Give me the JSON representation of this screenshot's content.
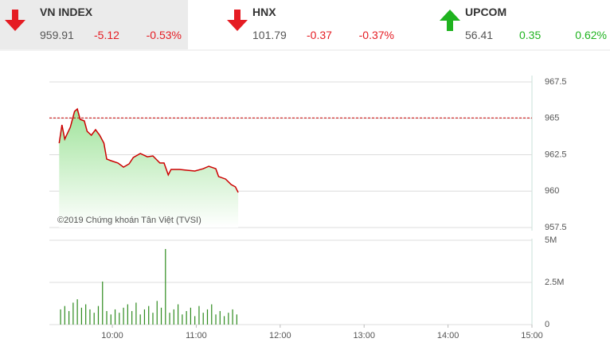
{
  "tickers": [
    {
      "name": "VN INDEX",
      "value": 959.91,
      "change": -5.12,
      "percent": "-0.53%"
    },
    {
      "name": "HNX",
      "value": 101.79,
      "change": -0.37,
      "percent": "-0.37%"
    },
    {
      "name": "UPCOM",
      "value": 56.41,
      "change": 0.35,
      "percent": "0.62%"
    }
  ],
  "up_color": "#1fb31f",
  "down_color": "#e51c23",
  "chart_data": [
    {
      "type": "line",
      "watermark": "©2019 Chứng khoán Tân Việt (TVSI)",
      "color": "#cc0000",
      "reference": 965.03,
      "x": [
        562,
        564,
        566,
        570,
        573,
        575,
        577,
        580,
        582,
        585,
        588,
        591,
        594,
        596,
        599,
        604,
        608,
        612,
        615,
        620,
        625,
        629,
        634,
        637,
        640,
        642,
        648,
        654,
        659,
        665,
        669,
        674,
        676,
        681,
        685,
        688,
        690
      ],
      "values": [
        963.29,
        964.55,
        963.57,
        964.39,
        965.48,
        965.64,
        964.93,
        964.82,
        964.11,
        963.84,
        964.22,
        963.84,
        963.29,
        962.2,
        962.09,
        961.93,
        961.65,
        961.87,
        962.31,
        962.58,
        962.36,
        962.42,
        961.93,
        961.93,
        961.11,
        961.49,
        961.49,
        961.43,
        961.38,
        961.54,
        961.71,
        961.54,
        961.0,
        960.83,
        960.45,
        960.29,
        959.91
      ],
      "xlim": [
        555,
        900
      ],
      "ylim": [
        957.5,
        967.5
      ],
      "yticks": [
        957.5,
        960,
        962.5,
        965,
        967.5
      ],
      "grid": true
    },
    {
      "type": "bar",
      "color": "#2e8b1e",
      "x": [
        563,
        566,
        569,
        572,
        575,
        578,
        581,
        584,
        587,
        590,
        593,
        596,
        599,
        602,
        605,
        608,
        611,
        614,
        617,
        620,
        623,
        626,
        629,
        632,
        635,
        638,
        641,
        644,
        647,
        650,
        653,
        656,
        659,
        662,
        665,
        668,
        671,
        674,
        677,
        680,
        683,
        686,
        689
      ],
      "values": [
        900000,
        1100000,
        800000,
        1300000,
        1500000,
        1000000,
        1200000,
        900000,
        700000,
        1100000,
        2550000,
        800000,
        600000,
        900000,
        700000,
        1000000,
        1200000,
        800000,
        1300000,
        600000,
        900000,
        1100000,
        700000,
        1400000,
        1000000,
        4480000,
        700000,
        900000,
        1200000,
        600000,
        800000,
        1000000,
        500000,
        1100000,
        700000,
        900000,
        1200000,
        600000,
        800000,
        500000,
        700000,
        900000,
        600000
      ],
      "xlim": [
        555,
        900
      ],
      "ylim": [
        0,
        5000000
      ],
      "yticks": [
        {
          "value": 0,
          "label": "0"
        },
        {
          "value": 2500000,
          "label": "2.5M"
        },
        {
          "value": 5000000,
          "label": "5M"
        }
      ],
      "xticks": [
        {
          "value": 600,
          "label": "10:00"
        },
        {
          "value": 660,
          "label": "11:00"
        },
        {
          "value": 720,
          "label": "12:00"
        },
        {
          "value": 780,
          "label": "13:00"
        },
        {
          "value": 840,
          "label": "14:00"
        },
        {
          "value": 900,
          "label": "15:00"
        }
      ],
      "grid": true
    }
  ]
}
